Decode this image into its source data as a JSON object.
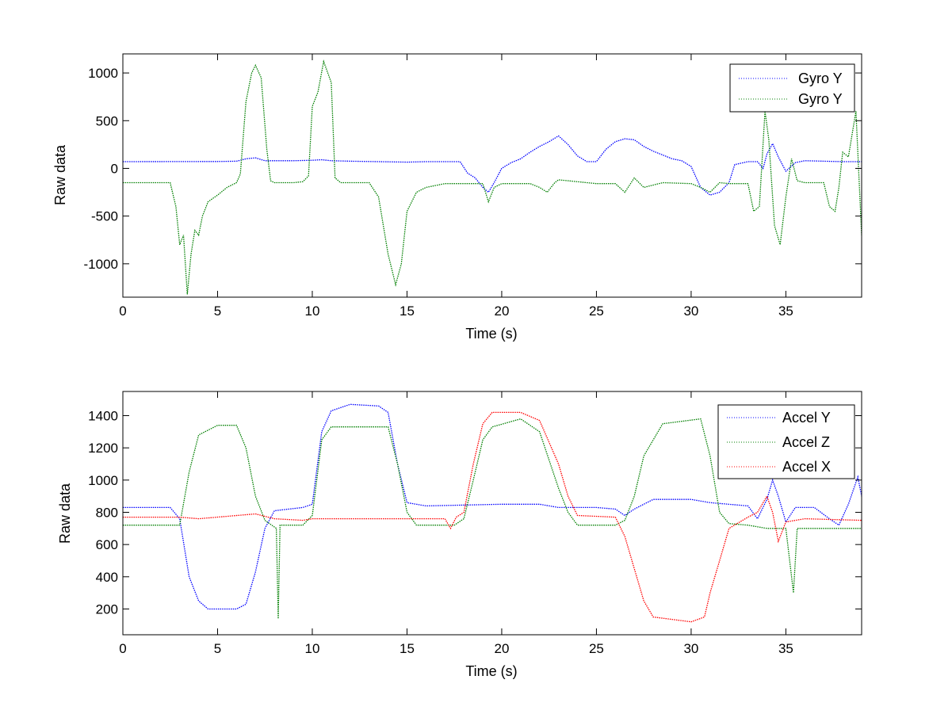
{
  "colors": {
    "blue": "#0000ff",
    "green": "#007f00",
    "red": "#ff0000",
    "axis": "#000000",
    "background": "#ffffff"
  },
  "chart_data": [
    {
      "type": "line",
      "panel": "top",
      "xlabel": "Time (s)",
      "ylabel": "Raw data",
      "xlim": [
        0,
        39
      ],
      "ylim": [
        -1350,
        1200
      ],
      "xticks": [
        0,
        5,
        10,
        15,
        20,
        25,
        30,
        35
      ],
      "xtick_labels": [
        "0",
        "5",
        "10",
        "15",
        "20",
        "25",
        "30",
        "35"
      ],
      "yticks": [
        -1000,
        -500,
        0,
        500,
        1000
      ],
      "ytick_labels": [
        "-1000",
        "-500",
        "0",
        "500",
        "1000"
      ],
      "grid": false,
      "legend_position": "top-right",
      "series": [
        {
          "name": "Gyro Y",
          "color": "#0000ff",
          "line_style": "dotted",
          "points": [
            [
              0,
              70
            ],
            [
              5,
              72
            ],
            [
              6,
              75
            ],
            [
              6.5,
              100
            ],
            [
              7,
              110
            ],
            [
              7.5,
              80
            ],
            [
              8,
              80
            ],
            [
              9,
              80
            ],
            [
              10,
              85
            ],
            [
              10.5,
              90
            ],
            [
              11,
              80
            ],
            [
              12,
              75
            ],
            [
              15,
              65
            ],
            [
              16,
              70
            ],
            [
              17.8,
              70
            ],
            [
              18.2,
              -50
            ],
            [
              18.6,
              -100
            ],
            [
              19,
              -200
            ],
            [
              19.3,
              -250
            ],
            [
              19.6,
              -150
            ],
            [
              20,
              0
            ],
            [
              20.5,
              60
            ],
            [
              21,
              100
            ],
            [
              21.5,
              170
            ],
            [
              22,
              230
            ],
            [
              22.5,
              280
            ],
            [
              23,
              340
            ],
            [
              23.5,
              250
            ],
            [
              24,
              130
            ],
            [
              24.5,
              70
            ],
            [
              25,
              70
            ],
            [
              25.5,
              200
            ],
            [
              26,
              280
            ],
            [
              26.5,
              310
            ],
            [
              27,
              300
            ],
            [
              27.5,
              230
            ],
            [
              28,
              180
            ],
            [
              28.5,
              140
            ],
            [
              29,
              100
            ],
            [
              29.5,
              80
            ],
            [
              30,
              20
            ],
            [
              30.5,
              -200
            ],
            [
              31,
              -280
            ],
            [
              31.5,
              -250
            ],
            [
              32,
              -150
            ],
            [
              32.3,
              40
            ],
            [
              33,
              70
            ],
            [
              33.5,
              70
            ],
            [
              33.8,
              0
            ],
            [
              34,
              150
            ],
            [
              34.3,
              260
            ],
            [
              34.6,
              120
            ],
            [
              35,
              -30
            ],
            [
              35.5,
              60
            ],
            [
              36,
              80
            ],
            [
              38,
              70
            ],
            [
              39,
              70
            ]
          ]
        },
        {
          "name": "Gyro Y",
          "color": "#007f00",
          "line_style": "dotted",
          "points": [
            [
              0,
              -150
            ],
            [
              2.5,
              -150
            ],
            [
              2.8,
              -400
            ],
            [
              3,
              -800
            ],
            [
              3.2,
              -700
            ],
            [
              3.4,
              -1320
            ],
            [
              3.6,
              -900
            ],
            [
              3.8,
              -650
            ],
            [
              4,
              -700
            ],
            [
              4.2,
              -500
            ],
            [
              4.5,
              -350
            ],
            [
              5,
              -280
            ],
            [
              5.5,
              -200
            ],
            [
              6,
              -150
            ],
            [
              6.2,
              -60
            ],
            [
              6.5,
              700
            ],
            [
              6.8,
              1000
            ],
            [
              7,
              1080
            ],
            [
              7.3,
              950
            ],
            [
              7.6,
              200
            ],
            [
              7.8,
              -130
            ],
            [
              8,
              -150
            ],
            [
              9,
              -150
            ],
            [
              9.5,
              -140
            ],
            [
              9.8,
              -80
            ],
            [
              10,
              650
            ],
            [
              10.3,
              800
            ],
            [
              10.6,
              1120
            ],
            [
              11,
              900
            ],
            [
              11.2,
              -100
            ],
            [
              11.5,
              -150
            ],
            [
              13,
              -150
            ],
            [
              13.5,
              -300
            ],
            [
              14,
              -900
            ],
            [
              14.4,
              -1220
            ],
            [
              14.7,
              -1000
            ],
            [
              15,
              -450
            ],
            [
              15.5,
              -250
            ],
            [
              16,
              -200
            ],
            [
              17,
              -160
            ],
            [
              18,
              -160
            ],
            [
              19,
              -160
            ],
            [
              19.3,
              -350
            ],
            [
              19.6,
              -200
            ],
            [
              20,
              -160
            ],
            [
              21.5,
              -160
            ],
            [
              22,
              -200
            ],
            [
              22.4,
              -250
            ],
            [
              22.8,
              -150
            ],
            [
              23,
              -120
            ],
            [
              25,
              -160
            ],
            [
              26,
              -160
            ],
            [
              26.5,
              -250
            ],
            [
              27,
              -100
            ],
            [
              27.5,
              -200
            ],
            [
              28.5,
              -150
            ],
            [
              30,
              -160
            ],
            [
              30.5,
              -200
            ],
            [
              31,
              -250
            ],
            [
              31.5,
              -150
            ],
            [
              32,
              -160
            ],
            [
              33,
              -160
            ],
            [
              33.3,
              -450
            ],
            [
              33.6,
              -400
            ],
            [
              33.9,
              600
            ],
            [
              34.1,
              300
            ],
            [
              34.4,
              -600
            ],
            [
              34.7,
              -800
            ],
            [
              35,
              -300
            ],
            [
              35.3,
              100
            ],
            [
              35.6,
              -130
            ],
            [
              36,
              -150
            ],
            [
              37,
              -150
            ],
            [
              37.3,
              -400
            ],
            [
              37.6,
              -450
            ],
            [
              37.8,
              -200
            ],
            [
              38,
              170
            ],
            [
              38.3,
              120
            ],
            [
              38.7,
              600
            ],
            [
              39,
              -700
            ]
          ]
        }
      ]
    },
    {
      "type": "line",
      "panel": "bottom",
      "xlabel": "Time (s)",
      "ylabel": "Raw data",
      "xlim": [
        0,
        39
      ],
      "ylim": [
        40,
        1550
      ],
      "xticks": [
        0,
        5,
        10,
        15,
        20,
        25,
        30,
        35
      ],
      "xtick_labels": [
        "0",
        "5",
        "10",
        "15",
        "20",
        "25",
        "30",
        "35"
      ],
      "yticks": [
        200,
        400,
        600,
        800,
        1000,
        1200,
        1400
      ],
      "ytick_labels": [
        "200",
        "400",
        "600",
        "800",
        "1000",
        "1200",
        "1400"
      ],
      "grid": false,
      "legend_position": "top-right",
      "series": [
        {
          "name": "Accel Y",
          "color": "#0000ff",
          "line_style": "dotted",
          "points": [
            [
              0,
              830
            ],
            [
              2.5,
              830
            ],
            [
              3,
              760
            ],
            [
              3.5,
              400
            ],
            [
              4,
              250
            ],
            [
              4.5,
              200
            ],
            [
              6,
              200
            ],
            [
              6.5,
              230
            ],
            [
              7,
              430
            ],
            [
              7.5,
              700
            ],
            [
              8,
              810
            ],
            [
              9.5,
              830
            ],
            [
              10,
              850
            ],
            [
              10.5,
              1300
            ],
            [
              11,
              1430
            ],
            [
              12,
              1470
            ],
            [
              13.5,
              1460
            ],
            [
              14,
              1420
            ],
            [
              14.5,
              1100
            ],
            [
              15,
              860
            ],
            [
              16,
              840
            ],
            [
              20,
              850
            ],
            [
              22,
              850
            ],
            [
              23,
              830
            ],
            [
              25,
              830
            ],
            [
              26,
              820
            ],
            [
              26.5,
              780
            ],
            [
              27,
              820
            ],
            [
              28,
              880
            ],
            [
              30,
              880
            ],
            [
              31,
              860
            ],
            [
              33,
              840
            ],
            [
              33.5,
              760
            ],
            [
              34,
              880
            ],
            [
              34.3,
              1000
            ],
            [
              34.6,
              900
            ],
            [
              35,
              740
            ],
            [
              35.5,
              830
            ],
            [
              36.5,
              830
            ],
            [
              37.3,
              760
            ],
            [
              37.8,
              720
            ],
            [
              38.3,
              850
            ],
            [
              38.8,
              1020
            ],
            [
              39,
              900
            ]
          ]
        },
        {
          "name": "Accel Z",
          "color": "#007f00",
          "line_style": "dotted",
          "points": [
            [
              0,
              720
            ],
            [
              3,
              720
            ],
            [
              3.5,
              1050
            ],
            [
              4,
              1280
            ],
            [
              5,
              1340
            ],
            [
              6,
              1340
            ],
            [
              6.5,
              1200
            ],
            [
              7,
              900
            ],
            [
              7.5,
              750
            ],
            [
              8.1,
              700
            ],
            [
              8.2,
              140
            ],
            [
              8.3,
              720
            ],
            [
              9.5,
              720
            ],
            [
              10,
              780
            ],
            [
              10.5,
              1250
            ],
            [
              11,
              1330
            ],
            [
              14,
              1330
            ],
            [
              14.5,
              1100
            ],
            [
              15,
              800
            ],
            [
              15.5,
              720
            ],
            [
              17.5,
              720
            ],
            [
              18,
              760
            ],
            [
              18.5,
              1000
            ],
            [
              19,
              1250
            ],
            [
              19.5,
              1330
            ],
            [
              21,
              1380
            ],
            [
              22,
              1300
            ],
            [
              23,
              950
            ],
            [
              23.5,
              800
            ],
            [
              24,
              720
            ],
            [
              26,
              720
            ],
            [
              26.5,
              750
            ],
            [
              27,
              900
            ],
            [
              27.5,
              1150
            ],
            [
              28.5,
              1350
            ],
            [
              30.5,
              1380
            ],
            [
              31,
              1150
            ],
            [
              31.5,
              800
            ],
            [
              32,
              730
            ],
            [
              33,
              720
            ],
            [
              34,
              700
            ],
            [
              35,
              700
            ],
            [
              35.4,
              300
            ],
            [
              35.6,
              700
            ],
            [
              39,
              700
            ]
          ]
        },
        {
          "name": "Accel X",
          "color": "#ff0000",
          "line_style": "dotted",
          "points": [
            [
              0,
              770
            ],
            [
              3,
              770
            ],
            [
              4,
              760
            ],
            [
              7,
              790
            ],
            [
              8,
              760
            ],
            [
              9.5,
              750
            ],
            [
              10,
              760
            ],
            [
              17,
              760
            ],
            [
              17.3,
              700
            ],
            [
              17.6,
              770
            ],
            [
              18,
              800
            ],
            [
              18.5,
              1100
            ],
            [
              19,
              1350
            ],
            [
              19.5,
              1420
            ],
            [
              21,
              1420
            ],
            [
              22,
              1370
            ],
            [
              23,
              1100
            ],
            [
              23.5,
              900
            ],
            [
              24,
              780
            ],
            [
              26,
              770
            ],
            [
              26.5,
              650
            ],
            [
              27,
              450
            ],
            [
              27.5,
              250
            ],
            [
              28,
              150
            ],
            [
              30,
              120
            ],
            [
              30.7,
              150
            ],
            [
              31,
              300
            ],
            [
              31.5,
              500
            ],
            [
              32,
              700
            ],
            [
              33,
              770
            ],
            [
              33.5,
              800
            ],
            [
              34,
              900
            ],
            [
              34.3,
              800
            ],
            [
              34.6,
              620
            ],
            [
              35,
              740
            ],
            [
              36,
              760
            ],
            [
              39,
              750
            ]
          ]
        }
      ]
    }
  ]
}
